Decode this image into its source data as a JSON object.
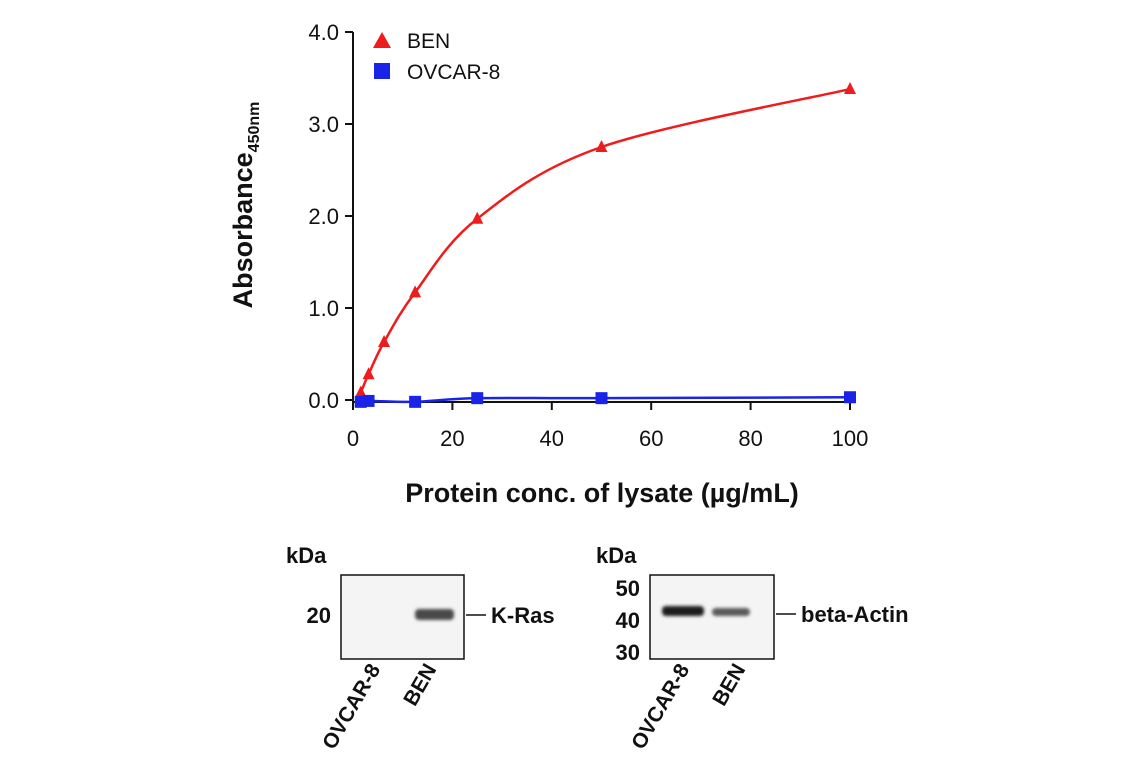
{
  "chart_data": [
    {
      "type": "line",
      "xlabel": "Protein conc. of lysate (µg/mL)",
      "ylabel": "Absorbance",
      "ylabel_subscript": "450nm",
      "xlim": [
        0,
        100
      ],
      "ylim": [
        0,
        4
      ],
      "x_ticks": [
        "0",
        "20",
        "40",
        "60",
        "80",
        "100"
      ],
      "y_ticks": [
        "0.0",
        "1.0",
        "2.0",
        "3.0",
        "4.0"
      ],
      "grid": false,
      "legend_position": "top-left",
      "series": [
        {
          "name": "BEN",
          "color": "#ee1c1c",
          "marker": "triangle",
          "x": [
            1.56,
            3.13,
            6.25,
            12.5,
            25,
            50,
            100
          ],
          "y": [
            0.08,
            0.28,
            0.63,
            1.17,
            1.97,
            2.75,
            3.38
          ]
        },
        {
          "name": "OVCAR-8",
          "color": "#1a24e8",
          "marker": "square",
          "x": [
            1.56,
            3.13,
            12.5,
            25,
            50,
            100
          ],
          "y": [
            -0.02,
            -0.01,
            -0.02,
            0.02,
            0.02,
            0.03
          ]
        }
      ]
    },
    {
      "type": "western-blot",
      "unit_label": "kDa",
      "band_label": "K-Ras",
      "marker_labels": [
        "20"
      ],
      "lanes": [
        "OVCAR-8",
        "BEN"
      ]
    },
    {
      "type": "western-blot",
      "unit_label": "kDa",
      "band_label": "beta-Actin",
      "marker_labels": [
        "50",
        "40",
        "30"
      ],
      "lanes": [
        "OVCAR-8",
        "BEN"
      ]
    }
  ]
}
